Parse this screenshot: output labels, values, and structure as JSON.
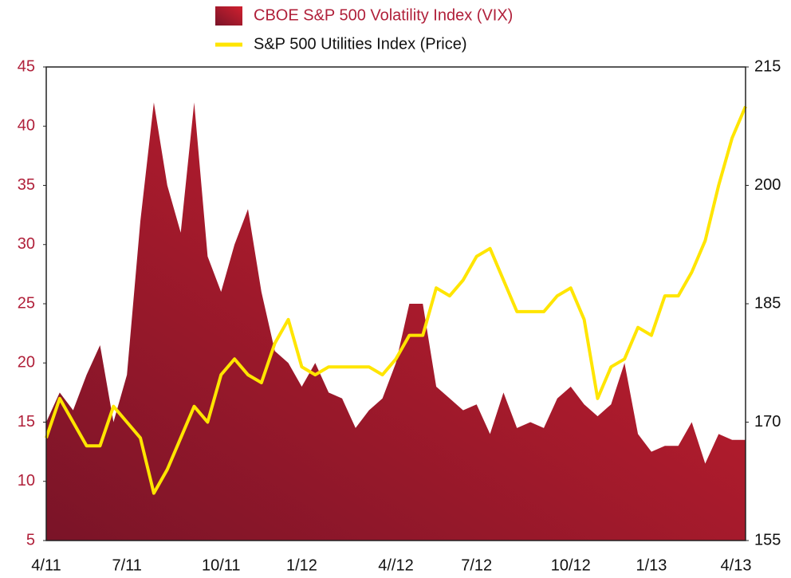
{
  "chart_data": {
    "type": "area-line",
    "categories": [
      "4/11",
      null,
      null,
      null,
      null,
      null,
      "7/11",
      null,
      null,
      null,
      null,
      null,
      null,
      "10/11",
      null,
      null,
      null,
      null,
      null,
      "1/12",
      null,
      null,
      null,
      null,
      null,
      null,
      "4//12",
      null,
      null,
      null,
      null,
      null,
      "7/12",
      null,
      null,
      null,
      null,
      null,
      null,
      "10/12",
      null,
      null,
      null,
      null,
      null,
      "1/13",
      null,
      null,
      null,
      null,
      null,
      null,
      "4/13"
    ],
    "series": [
      {
        "name": "CBOE S&P 500 Volatility Index (VIX)",
        "color": "#a81c32",
        "values": [
          15,
          17.5,
          16,
          19,
          21.5,
          15,
          19,
          32,
          42,
          35,
          31,
          42,
          29,
          26,
          30,
          33,
          26,
          21,
          20,
          18,
          20,
          17.5,
          17,
          14.5,
          16,
          17,
          20,
          25,
          25,
          18,
          17,
          16,
          16.5,
          14,
          17.5,
          14.5,
          15,
          14.5,
          17,
          18,
          16.5,
          15.5,
          16.5,
          20,
          14,
          12.5,
          13,
          13,
          15,
          11.5,
          14,
          13.5,
          13.5
        ]
      },
      {
        "name": "S&P 500 Utilities Index (Price)",
        "color": "#ffe500",
        "axis": "y2",
        "values": [
          168,
          173,
          170,
          167,
          167,
          172,
          170,
          168,
          161,
          164,
          168,
          172,
          170,
          176,
          178,
          176,
          175,
          180,
          183,
          177,
          176,
          177,
          177,
          177,
          177,
          176,
          178,
          181,
          181,
          187,
          186,
          188,
          191,
          192,
          188,
          184,
          184,
          184,
          186,
          187,
          183,
          173,
          177,
          178,
          182,
          181,
          186,
          186,
          189,
          193,
          200,
          206,
          210
        ]
      }
    ],
    "ylim": [
      5,
      45
    ],
    "yticks": [
      5,
      10,
      15,
      20,
      25,
      30,
      35,
      40,
      45
    ],
    "y2lim": [
      155,
      215
    ],
    "y2ticks": [
      155,
      170,
      185,
      200,
      215
    ]
  }
}
